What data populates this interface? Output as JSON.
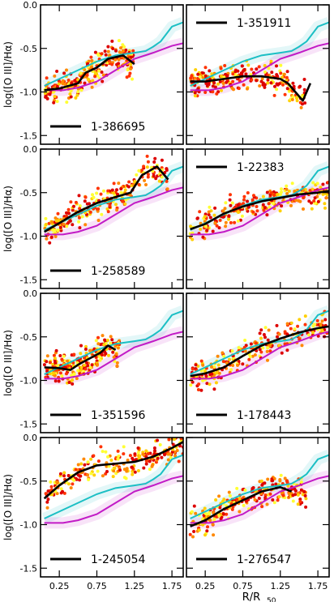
{
  "figure": {
    "ylabel": "log([O III]/Hα)",
    "xlabel": "R/R",
    "xlabel_sub": "50"
  },
  "chart_data": {
    "type": "scatter",
    "layout": "4x2 grid, shared axes",
    "xlim": [
      0.0,
      1.9
    ],
    "ylim": [
      -1.6,
      0.0
    ],
    "xticks": [
      0.25,
      0.75,
      1.25,
      1.75
    ],
    "xtick_labels": [
      "0.25",
      "0.75",
      "1.25",
      "1.75"
    ],
    "yticks": [
      0.0,
      -0.5,
      -1.0,
      -1.5
    ],
    "ytick_labels": [
      "0.0",
      "-0.5",
      "-1.0",
      "-1.5"
    ],
    "legend_position": "inside lower-left or upper-left of each panel",
    "colors": {
      "median_profile": "#000000",
      "reference_cyan": "#1bbfc4",
      "reference_magenta": "#c21bc6",
      "spaxel_palette": [
        "#dd0000",
        "#ff3300",
        "#ff8800",
        "#ffd000",
        "#ffff33"
      ]
    },
    "reference_curves": {
      "cyan": {
        "x": [
          0.05,
          0.25,
          0.5,
          0.75,
          1.0,
          1.25,
          1.4,
          1.5,
          1.6,
          1.75,
          1.9
        ],
        "y": [
          -0.93,
          -0.85,
          -0.75,
          -0.65,
          -0.58,
          -0.55,
          -0.53,
          -0.48,
          -0.42,
          -0.25,
          -0.2
        ]
      },
      "magenta": {
        "x": [
          0.05,
          0.3,
          0.5,
          0.75,
          1.0,
          1.25,
          1.5,
          1.75,
          1.9
        ],
        "y": [
          -0.98,
          -0.98,
          -0.95,
          -0.88,
          -0.75,
          -0.62,
          -0.55,
          -0.47,
          -0.44
        ]
      }
    },
    "panels": [
      {
        "label": "1-386695",
        "legend_pos": "bottom",
        "xmax_data": 1.25,
        "median": {
          "x": [
            0.05,
            0.25,
            0.5,
            0.6,
            0.75,
            0.9,
            1.0,
            1.1,
            1.25
          ],
          "y": [
            -0.98,
            -0.96,
            -0.9,
            -0.78,
            -0.72,
            -0.62,
            -0.6,
            -0.58,
            -0.68
          ]
        }
      },
      {
        "label": "1-351911",
        "legend_pos": "top",
        "xmax_data": 1.6,
        "median": {
          "x": [
            0.05,
            0.25,
            0.5,
            0.75,
            1.0,
            1.25,
            1.35,
            1.45,
            1.55,
            1.65
          ],
          "y": [
            -0.88,
            -0.88,
            -0.85,
            -0.82,
            -0.82,
            -0.85,
            -0.9,
            -1.0,
            -1.1,
            -0.9
          ]
        }
      },
      {
        "label": "1-258589",
        "legend_pos": "bottom",
        "xmax_data": 1.7,
        "median": {
          "x": [
            0.05,
            0.25,
            0.5,
            0.75,
            1.0,
            1.2,
            1.35,
            1.55,
            1.7
          ],
          "y": [
            -0.95,
            -0.85,
            -0.72,
            -0.62,
            -0.55,
            -0.5,
            -0.3,
            -0.2,
            -0.35
          ]
        }
      },
      {
        "label": "1-22383",
        "legend_pos": "top",
        "xmax_data": 1.9,
        "median": {
          "x": [
            0.05,
            0.25,
            0.5,
            0.75,
            1.0,
            1.25,
            1.5,
            1.75,
            1.9
          ],
          "y": [
            -0.92,
            -0.86,
            -0.74,
            -0.66,
            -0.6,
            -0.56,
            -0.52,
            -0.5,
            -0.48
          ]
        }
      },
      {
        "label": "1-351596",
        "legend_pos": "bottom",
        "xmax_data": 1.05,
        "median": {
          "x": [
            0.05,
            0.25,
            0.4,
            0.5,
            0.65,
            0.8,
            0.9,
            1.0
          ],
          "y": [
            -0.85,
            -0.86,
            -0.88,
            -0.82,
            -0.75,
            -0.68,
            -0.6,
            -0.65
          ]
        }
      },
      {
        "label": "1-178443",
        "legend_pos": "bottom",
        "xmax_data": 1.9,
        "median": {
          "x": [
            0.05,
            0.25,
            0.5,
            0.75,
            1.0,
            1.25,
            1.5,
            1.75,
            1.9
          ],
          "y": [
            -0.95,
            -0.92,
            -0.85,
            -0.72,
            -0.6,
            -0.52,
            -0.45,
            -0.4,
            -0.38
          ]
        }
      },
      {
        "label": "1-245054",
        "legend_pos": "bottom",
        "xmax_data": 1.9,
        "median": {
          "x": [
            0.05,
            0.25,
            0.5,
            0.75,
            1.0,
            1.25,
            1.5,
            1.75,
            1.9
          ],
          "y": [
            -0.7,
            -0.55,
            -0.4,
            -0.32,
            -0.3,
            -0.28,
            -0.22,
            -0.12,
            -0.05
          ]
        }
      },
      {
        "label": "1-276547",
        "legend_pos": "bottom",
        "xmax_data": 1.6,
        "median": {
          "x": [
            0.05,
            0.25,
            0.5,
            0.75,
            1.0,
            1.25,
            1.4
          ],
          "y": [
            -1.02,
            -0.95,
            -0.82,
            -0.72,
            -0.62,
            -0.57,
            -0.62
          ]
        }
      }
    ]
  }
}
